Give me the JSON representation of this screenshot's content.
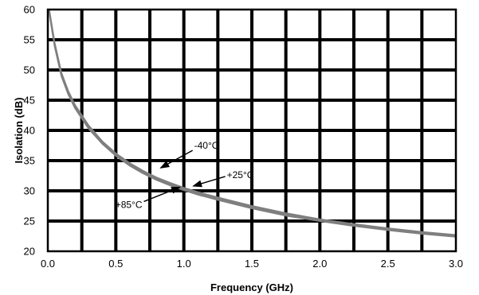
{
  "chart_data": {
    "type": "line",
    "title": "",
    "xlabel": "Frequency (GHz)",
    "ylabel": "Isolation (dB)",
    "xlim": [
      0.0,
      3.0
    ],
    "ylim": [
      20,
      60
    ],
    "x_ticks": [
      0.0,
      0.5,
      1.0,
      1.5,
      2.0,
      2.5,
      3.0
    ],
    "x_tick_labels": [
      "0.0",
      "0.5",
      "1.0",
      "1.5",
      "2.0",
      "2.5",
      "3.0"
    ],
    "y_ticks": [
      20,
      25,
      30,
      35,
      40,
      45,
      50,
      55,
      60
    ],
    "y_tick_labels": [
      "20",
      "25",
      "30",
      "35",
      "40",
      "45",
      "50",
      "55",
      "60"
    ],
    "grid": true,
    "series": [
      {
        "name": "-40°C",
        "color": "#7f7f7f",
        "x": [
          0.01,
          0.05,
          0.1,
          0.15,
          0.2,
          0.3,
          0.4,
          0.5,
          0.6,
          0.7,
          0.8,
          0.9,
          1.0,
          1.1,
          1.25,
          1.5,
          1.75,
          2.0,
          2.25,
          2.5,
          2.75,
          3.0
        ],
        "y": [
          60.0,
          54.5,
          49.5,
          46.5,
          44.2,
          40.8,
          38.2,
          36.2,
          34.6,
          33.3,
          32.2,
          31.3,
          30.5,
          29.8,
          28.9,
          27.5,
          26.3,
          25.3,
          24.5,
          23.8,
          23.2,
          22.7
        ]
      },
      {
        "name": "+25°C",
        "color": "#7f7f7f",
        "x": [
          0.01,
          0.05,
          0.1,
          0.15,
          0.2,
          0.3,
          0.4,
          0.5,
          0.6,
          0.7,
          0.8,
          0.9,
          1.0,
          1.1,
          1.25,
          1.5,
          1.75,
          2.0,
          2.25,
          2.5,
          2.75,
          3.0
        ],
        "y": [
          59.8,
          54.2,
          49.2,
          46.2,
          43.9,
          40.5,
          38.0,
          36.0,
          34.4,
          33.1,
          32.0,
          31.1,
          30.3,
          29.6,
          28.7,
          27.3,
          26.1,
          25.2,
          24.4,
          23.7,
          23.1,
          22.6
        ]
      },
      {
        "name": "+85°C",
        "color": "#7f7f7f",
        "x": [
          0.01,
          0.05,
          0.1,
          0.15,
          0.2,
          0.3,
          0.4,
          0.5,
          0.6,
          0.7,
          0.8,
          0.9,
          1.0,
          1.1,
          1.25,
          1.5,
          1.75,
          2.0,
          2.25,
          2.5,
          2.75,
          3.0
        ],
        "y": [
          59.6,
          54.0,
          49.0,
          46.0,
          43.7,
          40.3,
          37.8,
          35.8,
          34.2,
          32.9,
          31.8,
          30.9,
          30.1,
          29.4,
          28.5,
          27.1,
          25.9,
          25.0,
          24.2,
          23.5,
          22.9,
          22.4
        ]
      }
    ],
    "annotations": [
      {
        "text": "-40°C",
        "series": "-40°C",
        "x": 0.83,
        "y": 33.8
      },
      {
        "text": "+25°C",
        "series": "+25°C",
        "x": 1.07,
        "y": 30.8
      },
      {
        "text": "+85°C",
        "series": "+85°C",
        "x": 0.97,
        "y": 30.6
      }
    ]
  }
}
